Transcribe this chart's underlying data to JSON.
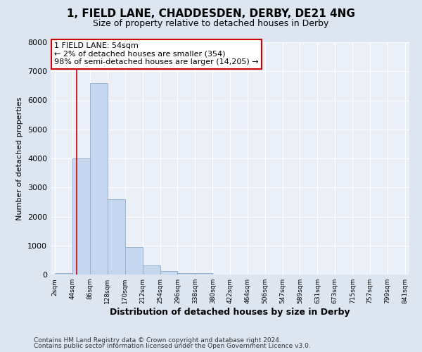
{
  "title": "1, FIELD LANE, CHADDESDEN, DERBY, DE21 4NG",
  "subtitle": "Size of property relative to detached houses in Derby",
  "xlabel": "Distribution of detached houses by size in Derby",
  "ylabel": "Number of detached properties",
  "bar_values": [
    60,
    4000,
    6600,
    2600,
    950,
    320,
    130,
    60,
    60,
    0,
    0,
    0,
    0,
    0,
    0,
    0,
    0,
    0,
    0,
    0
  ],
  "bar_edges": [
    2,
    44,
    86,
    128,
    170,
    212,
    254,
    296,
    338,
    380,
    422,
    464,
    506,
    547,
    589,
    631,
    673,
    715,
    757,
    799,
    841
  ],
  "tick_labels": [
    "2sqm",
    "44sqm",
    "86sqm",
    "128sqm",
    "170sqm",
    "212sqm",
    "254sqm",
    "296sqm",
    "338sqm",
    "380sqm",
    "422sqm",
    "464sqm",
    "506sqm",
    "547sqm",
    "589sqm",
    "631sqm",
    "673sqm",
    "715sqm",
    "757sqm",
    "799sqm",
    "841sqm"
  ],
  "bar_color": "#c5d8f0",
  "bar_edge_color": "#92b4d4",
  "property_line_x": 54,
  "property_line_color": "#cc0000",
  "annotation_line1": "1 FIELD LANE: 54sqm",
  "annotation_line2": "← 2% of detached houses are smaller (354)",
  "annotation_line3": "98% of semi-detached houses are larger (14,205) →",
  "annotation_box_color": "#cc0000",
  "ylim": [
    0,
    8000
  ],
  "yticks": [
    0,
    1000,
    2000,
    3000,
    4000,
    5000,
    6000,
    7000,
    8000
  ],
  "footer_line1": "Contains HM Land Registry data © Crown copyright and database right 2024.",
  "footer_line2": "Contains public sector information licensed under the Open Government Licence v3.0.",
  "background_color": "#dde5f0",
  "plot_background_color": "#eaeff8"
}
